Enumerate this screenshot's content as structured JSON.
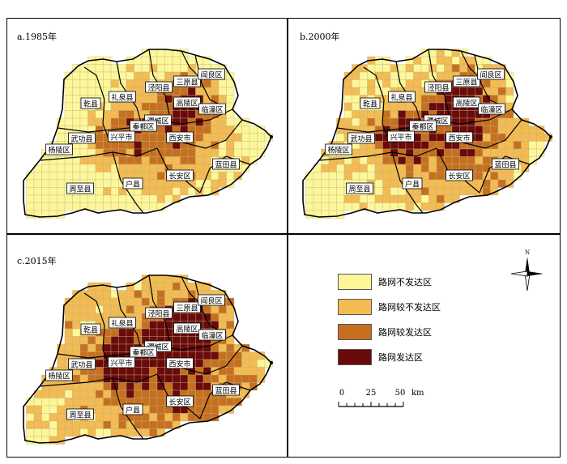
{
  "panels": [
    {
      "title": "a.1985年",
      "level_bias": 0
    },
    {
      "title": "b.2000年",
      "level_bias": 1
    },
    {
      "title": "c.2015年",
      "level_bias": 2
    }
  ],
  "districts": [
    {
      "name": "乾县"
    },
    {
      "name": "礼泉县"
    },
    {
      "name": "泾阳县"
    },
    {
      "name": "三原县"
    },
    {
      "name": "阎良区"
    },
    {
      "name": "高陵区"
    },
    {
      "name": "临潼区"
    },
    {
      "name": "渭城区"
    },
    {
      "name": "秦都区"
    },
    {
      "name": "武功县"
    },
    {
      "name": "杨陵区"
    },
    {
      "name": "兴平市"
    },
    {
      "name": "西安市"
    },
    {
      "name": "户县"
    },
    {
      "name": "长安区"
    },
    {
      "name": "蓝田县"
    },
    {
      "name": "周至县"
    }
  ],
  "legend": {
    "items": [
      {
        "label": "路网不发达区",
        "color": "#fdf79a"
      },
      {
        "label": "路网较不发达区",
        "color": "#f3bb52"
      },
      {
        "label": "路网较发达区",
        "color": "#c6701f"
      },
      {
        "label": "路网发达区",
        "color": "#6b0a0a"
      }
    ]
  },
  "north_arrow": {
    "label": "N"
  },
  "scale_bar": {
    "ticks": [
      "0",
      "25",
      "50"
    ],
    "unit": "km"
  }
}
